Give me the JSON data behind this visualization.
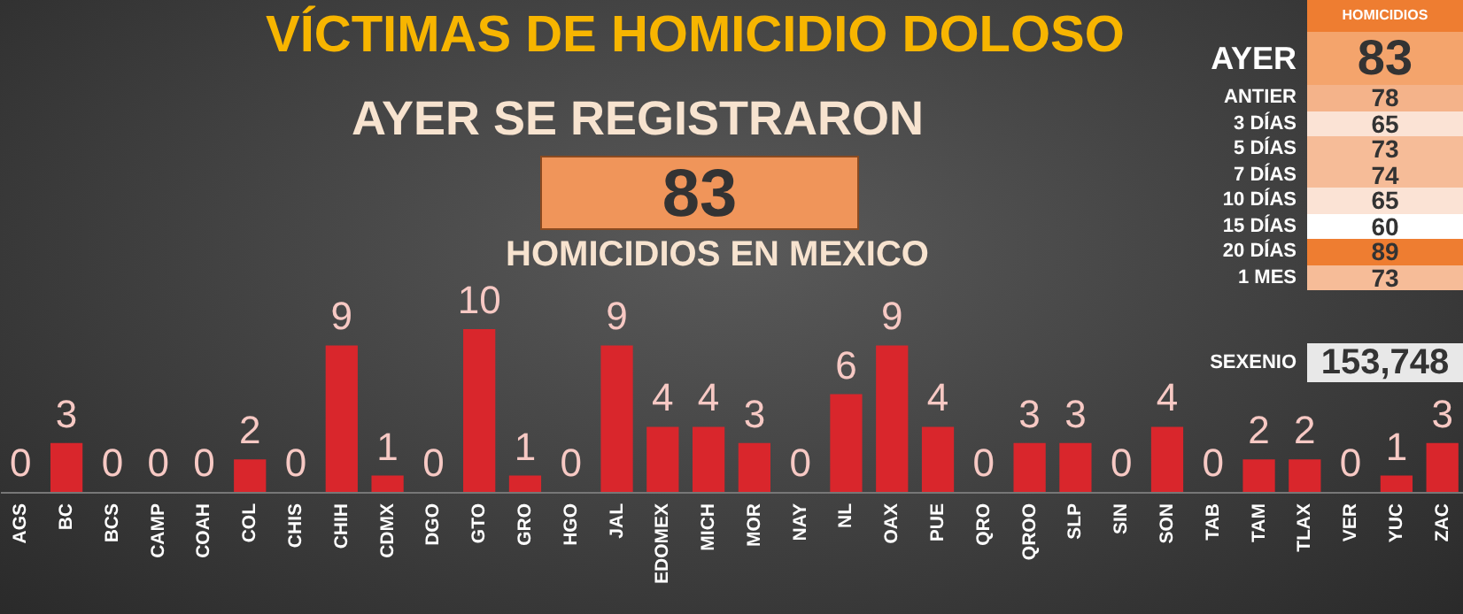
{
  "chart_data": [
    {
      "type": "bar",
      "title": "VÍCTIMAS DE HOMICIDIO DOLOSO",
      "subtitle": "AYER SE REGISTRARON",
      "annotations": [
        "83",
        "HOMICIDIOS EN MEXICO"
      ],
      "categories": [
        "AGS",
        "BC",
        "BCS",
        "CAMP",
        "COAH",
        "COL",
        "CHIS",
        "CHIH",
        "CDMX",
        "DGO",
        "GTO",
        "GRO",
        "HGO",
        "JAL",
        "EDOMEX",
        "MICH",
        "MOR",
        "NAY",
        "NL",
        "OAX",
        "PUE",
        "QRO",
        "QROO",
        "SLP",
        "SIN",
        "SON",
        "TAB",
        "TAM",
        "TLAX",
        "VER",
        "YUC",
        "ZAC"
      ],
      "values": [
        0,
        3,
        0,
        0,
        0,
        2,
        0,
        9,
        1,
        0,
        10,
        1,
        0,
        9,
        4,
        4,
        3,
        0,
        6,
        9,
        4,
        0,
        3,
        3,
        0,
        4,
        0,
        2,
        2,
        0,
        1,
        3
      ],
      "color": "#d9262c",
      "data_labels": true,
      "tick_labels": "x"
    },
    {
      "type": "other",
      "title": "HOMICIDIOS",
      "annotations": [
        "AYER",
        "83",
        "ANTIER",
        "78",
        "3 DÍAS",
        "65",
        "5 DÍAS",
        "73",
        "7 DÍAS",
        "74",
        "10 DÍAS",
        "65",
        "15 DÍAS",
        "60",
        "20 DÍAS",
        "89",
        "1 MES",
        "73",
        "SEXENIO",
        "153,748"
      ],
      "colors": [
        "#f4a46c",
        "#f4b38a",
        "#fbe3d5",
        "#f6bc98",
        "#f6bc98",
        "#fbe3d5",
        "#ffffff",
        "#ee7d31",
        "#f6bc98",
        "#e8e8e8"
      ]
    }
  ]
}
